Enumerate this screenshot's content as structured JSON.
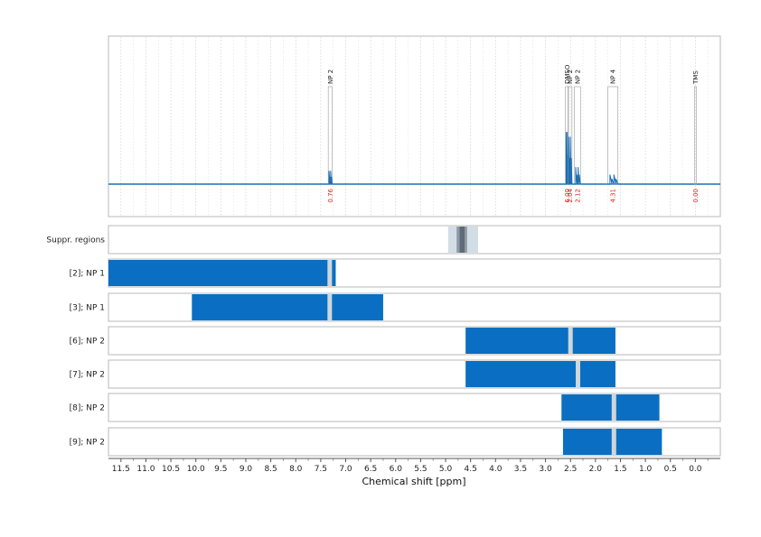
{
  "chart_data": {
    "type": "nmr-spectrum",
    "xlabel": "Chemical shift [ppm]",
    "xlim": [
      11.75,
      -0.5
    ],
    "xticks": [
      11.5,
      11.0,
      10.5,
      10.0,
      9.5,
      9.0,
      8.5,
      8.0,
      7.5,
      7.0,
      6.5,
      6.0,
      5.5,
      5.0,
      4.5,
      4.0,
      3.5,
      3.0,
      2.5,
      2.0,
      1.5,
      1.0,
      0.5,
      0.0
    ],
    "xtick_labels": [
      "11.5",
      "11.0",
      "10.5",
      "10.0",
      "9.5",
      "9.0",
      "8.5",
      "8.0",
      "7.5",
      "7.0",
      "6.5",
      "6.0",
      "5.5",
      "5.0",
      "4.5",
      "4.0",
      "3.5",
      "3.0",
      "2.5",
      "2.0",
      "1.5",
      "1.0",
      "0.5",
      "0.0"
    ],
    "colors": {
      "spectrum": "#1a6fb5",
      "bar": "#0a6fc2",
      "integral": "#e02020",
      "gap": "#cfd6dc",
      "suppr_outer": "#d3dde6",
      "suppr_mid": "#8e9aa6",
      "suppr_inner": "#5f6b76"
    },
    "peaks": [
      {
        "label": "NP 2",
        "x1": 7.35,
        "x2": 7.27,
        "height": 0.14,
        "integral": "0.76"
      },
      {
        "label": "DMSO",
        "x1": 2.6,
        "x2": 2.54,
        "height": 0.55,
        "integral": "6.00"
      },
      {
        "label": "NP 2",
        "x1": 2.55,
        "x2": 2.47,
        "height": 0.5,
        "integral": "2.04"
      },
      {
        "label": "NP 2",
        "x1": 2.42,
        "x2": 2.3,
        "height": 0.18,
        "integral": "2.12"
      },
      {
        "label": "NP 4",
        "x1": 1.75,
        "x2": 1.55,
        "height": 0.1,
        "integral": "4.31"
      },
      {
        "label": "TMS",
        "x1": 0.02,
        "x2": -0.02,
        "height": 0.0,
        "integral": "0.00"
      }
    ],
    "suppression": {
      "label": "Suppr. regions",
      "outer": [
        4.95,
        4.35
      ],
      "mid": [
        4.78,
        4.57
      ],
      "inner": [
        4.72,
        4.62
      ]
    },
    "rows": [
      {
        "label": "[2]; NP 1",
        "x1": 11.75,
        "x2": 7.2,
        "gaps": [
          7.32
        ]
      },
      {
        "label": "[3]; NP 1",
        "x1": 10.08,
        "x2": 6.25,
        "gaps": [
          7.32
        ]
      },
      {
        "label": "[6]; NP 2",
        "x1": 4.6,
        "x2": 1.6,
        "gaps": [
          2.5
        ]
      },
      {
        "label": "[7]; NP 2",
        "x1": 4.6,
        "x2": 1.6,
        "gaps": [
          2.35
        ]
      },
      {
        "label": "[8]; NP 2",
        "x1": 2.68,
        "x2": 0.72,
        "gaps": [
          1.63
        ]
      },
      {
        "label": "[9]; NP 2",
        "x1": 2.65,
        "x2": 0.67,
        "gaps": [
          1.63
        ]
      }
    ]
  }
}
